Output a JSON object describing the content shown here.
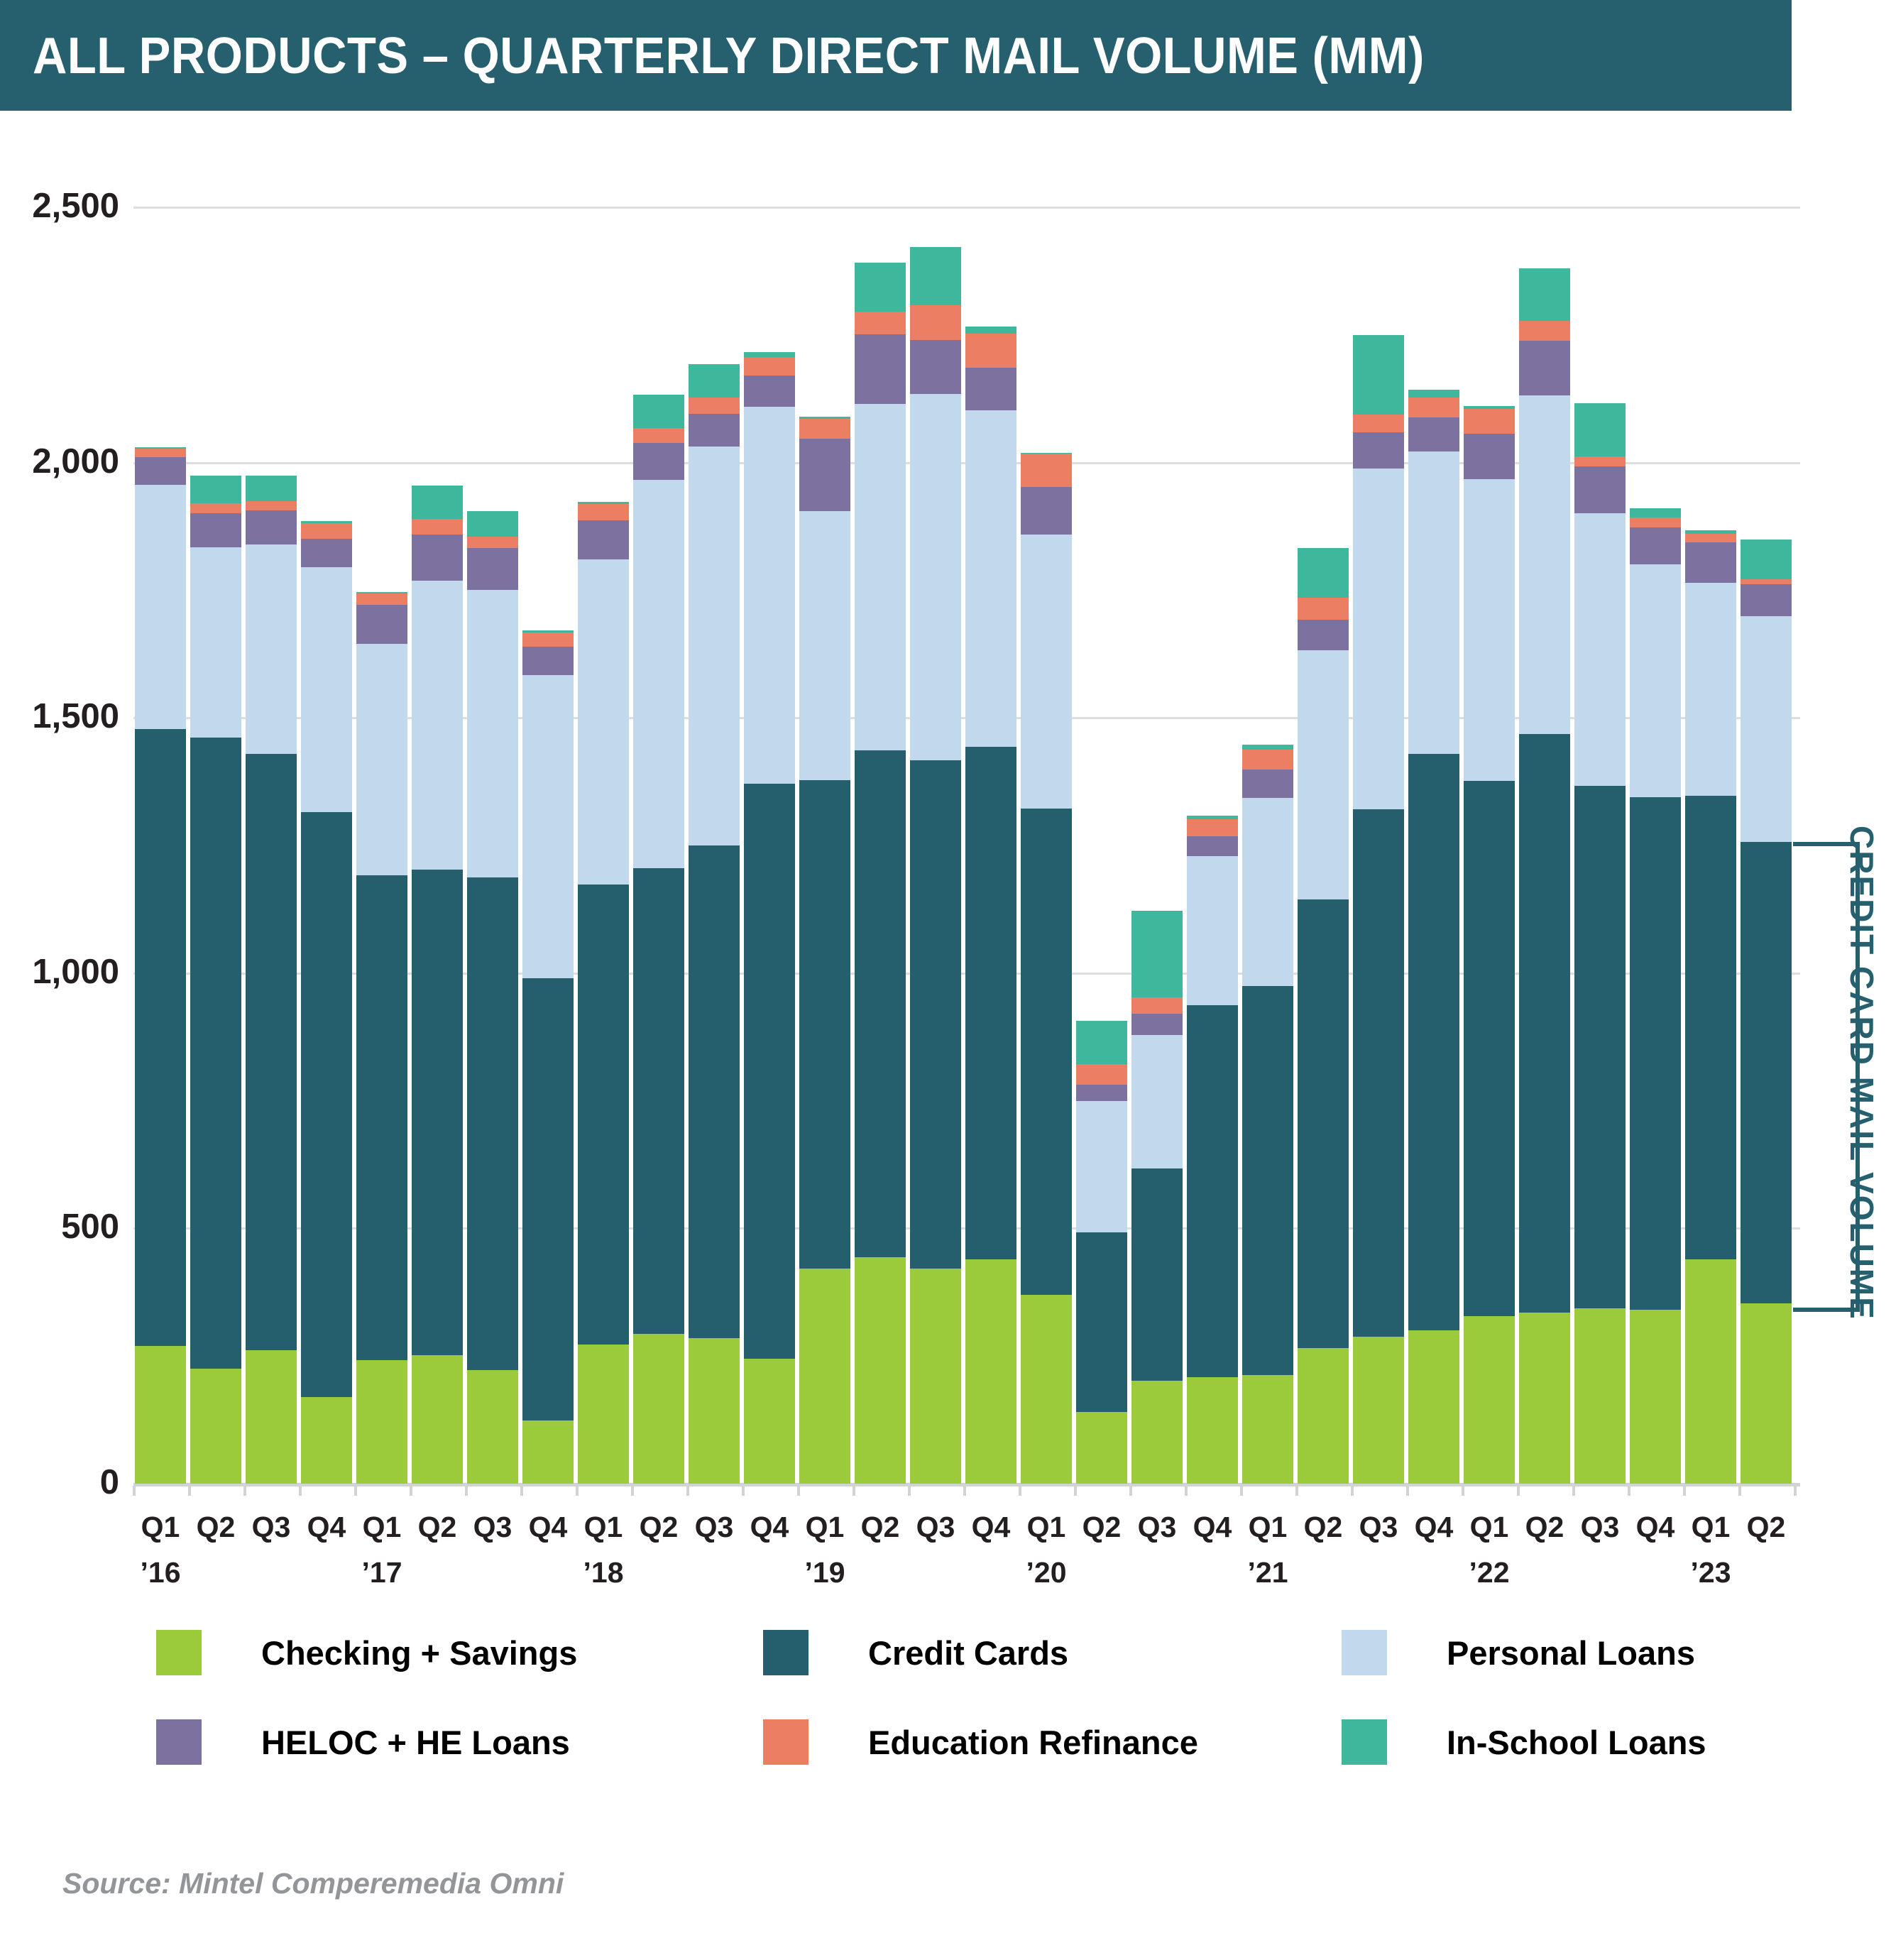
{
  "header": {
    "title": "ALL PRODUCTS – QUARTERLY DIRECT MAIL VOLUME (MM)"
  },
  "source": "Source: Mintel Comperemedia Omni",
  "annotation": {
    "label": "CREDIT CARD MAIL VOLUME",
    "series": "Credit Cards",
    "category": "Q2 '23"
  },
  "colors": {
    "header_bg": "#26606e",
    "grid": "#dedede",
    "baseline": "#d1d3d4",
    "axis_text": "#231f20",
    "annotation": "#26606e",
    "source_text": "#939598"
  },
  "chart_data": {
    "type": "bar",
    "stacked": true,
    "title": "ALL PRODUCTS – QUARTERLY DIRECT MAIL VOLUME (MM)",
    "unit": "MM",
    "grid": true,
    "legend_position": "bottom",
    "ylim": [
      0,
      2500
    ],
    "y_ticks": [
      {
        "v": 0,
        "label": "0"
      },
      {
        "v": 500,
        "label": "500"
      },
      {
        "v": 1000,
        "label": "1,000"
      },
      {
        "v": 1500,
        "label": "1,500"
      },
      {
        "v": 2000,
        "label": "2,000"
      },
      {
        "v": 2500,
        "label": "2,500"
      }
    ],
    "categories": [
      "Q1 '16",
      "Q2 '16",
      "Q3 '16",
      "Q4 '16",
      "Q1 '17",
      "Q2 '17",
      "Q3 '17",
      "Q4 '17",
      "Q1 '18",
      "Q2 '18",
      "Q3 '18",
      "Q4 '18",
      "Q1 '19",
      "Q2 '19",
      "Q3 '19",
      "Q4 '19",
      "Q1 '20",
      "Q2 '20",
      "Q3 '20",
      "Q4 '20",
      "Q1 '21",
      "Q2 '21",
      "Q3 '21",
      "Q4 '21",
      "Q1 '22",
      "Q2 '22",
      "Q3 '22",
      "Q4 '22",
      "Q1 '23",
      "Q2 '23"
    ],
    "x_quarter_labels": [
      "Q1",
      "Q2",
      "Q3",
      "Q4",
      "Q1",
      "Q2",
      "Q3",
      "Q4",
      "Q1",
      "Q2",
      "Q3",
      "Q4",
      "Q1",
      "Q2",
      "Q3",
      "Q4",
      "Q1",
      "Q2",
      "Q3",
      "Q4",
      "Q1",
      "Q2",
      "Q3",
      "Q4",
      "Q1",
      "Q2",
      "Q3",
      "Q4",
      "Q1",
      "Q2"
    ],
    "x_year_labels": {
      "0": "’16",
      "4": "’17",
      "8": "’18",
      "12": "’19",
      "16": "’20",
      "20": "’21",
      "24": "’22",
      "28": "’23"
    },
    "series": [
      {
        "name": "Checking + Savings",
        "color": "#9bca3b",
        "values": [
          270,
          225,
          262,
          170,
          242,
          252,
          223,
          124,
          273,
          293,
          285,
          245,
          421,
          444,
          422,
          440,
          370,
          141,
          201,
          208,
          213,
          265,
          288,
          301,
          328,
          335,
          343,
          340,
          440,
          353
        ]
      },
      {
        "name": "Credit Cards",
        "color": "#255e6d",
        "values": [
          1208,
          1236,
          1167,
          1145,
          950,
          951,
          964,
          866,
          901,
          913,
          965,
          1126,
          957,
          992,
          995,
          1003,
          952,
          351,
          416,
          729,
          762,
          880,
          1033,
          1128,
          1048,
          1134,
          1024,
          1005,
          908,
          904
        ]
      },
      {
        "name": "Personal Loans",
        "color": "#c2d8ec",
        "values": [
          478,
          373,
          410,
          480,
          453,
          565,
          563,
          594,
          636,
          760,
          781,
          738,
          527,
          679,
          718,
          660,
          537,
          258,
          262,
          292,
          368,
          487,
          667,
          593,
          592,
          663,
          534,
          456,
          417,
          442
        ]
      },
      {
        "name": "HELOC + HE Loans",
        "color": "#7d71a0",
        "values": [
          54,
          67,
          67,
          56,
          76,
          91,
          82,
          56,
          77,
          72,
          65,
          61,
          142,
          136,
          105,
          83,
          93,
          31,
          41,
          39,
          56,
          60,
          71,
          67,
          89,
          106,
          91,
          72,
          79,
          63
        ]
      },
      {
        "name": "Education Refinance",
        "color": "#ec7e64",
        "values": [
          17,
          19,
          19,
          31,
          22,
          31,
          23,
          27,
          32,
          30,
          31,
          36,
          39,
          44,
          68,
          66,
          65,
          41,
          33,
          33,
          39,
          43,
          35,
          39,
          48,
          40,
          20,
          20,
          17,
          9
        ]
      },
      {
        "name": "In-School Loans",
        "color": "#3fb79c",
        "values": [
          3,
          55,
          50,
          3,
          3,
          65,
          50,
          4,
          4,
          65,
          66,
          11,
          4,
          96,
          114,
          15,
          2,
          84,
          169,
          8,
          10,
          97,
          156,
          15,
          6,
          103,
          105,
          17,
          7,
          79
        ]
      }
    ],
    "totals_note": "totals range ~906 (Q2 '20) to ~2422 (Q3 '19)"
  }
}
